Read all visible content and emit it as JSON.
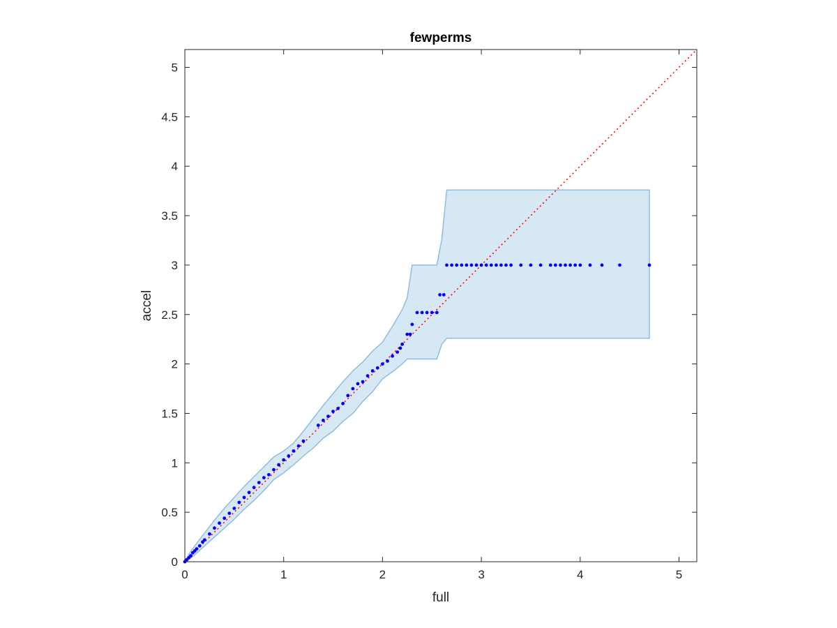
{
  "chart_data": {
    "type": "scatter",
    "title": "fewperms",
    "xlabel": "full",
    "ylabel": "accel",
    "xlim": [
      0,
      5.18
    ],
    "ylim": [
      0,
      5.18
    ],
    "x_ticks": [
      0,
      1,
      2,
      3,
      4,
      5
    ],
    "x_tick_labels": [
      "0",
      "1",
      "2",
      "3",
      "4",
      "5"
    ],
    "y_ticks": [
      0,
      0.5,
      1,
      1.5,
      2,
      2.5,
      3,
      3.5,
      4,
      4.5,
      5
    ],
    "y_tick_labels": [
      "0",
      "0.5",
      "1",
      "1.5",
      "2",
      "2.5",
      "3",
      "3.5",
      "4",
      "4.5",
      "5"
    ],
    "grid": false,
    "reference_line": {
      "description": "y = x",
      "color": "#ff0000",
      "style": "dotted"
    },
    "band": {
      "fill": "#d7e8f5",
      "stroke": "#8cbde0",
      "x": [
        0,
        0.05,
        0.1,
        0.2,
        0.3,
        0.4,
        0.5,
        0.6,
        0.7,
        0.8,
        0.9,
        1.0,
        1.1,
        1.2,
        1.3,
        1.4,
        1.5,
        1.6,
        1.7,
        1.8,
        1.9,
        2.0,
        2.1,
        2.2,
        2.25,
        2.3,
        2.4,
        2.5,
        2.55,
        2.6,
        2.65,
        4.7
      ],
      "upper": [
        0,
        0.09,
        0.16,
        0.29,
        0.42,
        0.54,
        0.65,
        0.76,
        0.86,
        0.96,
        1.06,
        1.12,
        1.2,
        1.32,
        1.45,
        1.58,
        1.7,
        1.82,
        1.93,
        2.02,
        2.13,
        2.22,
        2.38,
        2.55,
        2.67,
        3.0,
        3.0,
        3.0,
        3.0,
        3.26,
        3.76,
        3.76
      ],
      "lower": [
        0,
        0.03,
        0.07,
        0.16,
        0.25,
        0.34,
        0.43,
        0.53,
        0.62,
        0.72,
        0.83,
        0.9,
        0.98,
        1.07,
        1.15,
        1.25,
        1.32,
        1.42,
        1.5,
        1.62,
        1.72,
        1.85,
        1.92,
        2.0,
        2.05,
        2.05,
        2.05,
        2.05,
        2.05,
        2.2,
        2.26,
        2.26
      ]
    },
    "series": [
      {
        "color": "#0000ff",
        "points": [
          [
            0,
            0
          ],
          [
            0.02,
            0.02
          ],
          [
            0.04,
            0.04
          ],
          [
            0.06,
            0.06
          ],
          [
            0.08,
            0.09
          ],
          [
            0.1,
            0.11
          ],
          [
            0.12,
            0.13
          ],
          [
            0.15,
            0.16
          ],
          [
            0.18,
            0.2
          ],
          [
            0.2,
            0.22
          ],
          [
            0.25,
            0.28
          ],
          [
            0.3,
            0.34
          ],
          [
            0.35,
            0.39
          ],
          [
            0.4,
            0.44
          ],
          [
            0.45,
            0.49
          ],
          [
            0.5,
            0.54
          ],
          [
            0.55,
            0.6
          ],
          [
            0.6,
            0.65
          ],
          [
            0.65,
            0.7
          ],
          [
            0.7,
            0.75
          ],
          [
            0.75,
            0.8
          ],
          [
            0.8,
            0.85
          ],
          [
            0.85,
            0.88
          ],
          [
            0.9,
            0.93
          ],
          [
            0.95,
            0.98
          ],
          [
            1.0,
            1.03
          ],
          [
            1.05,
            1.07
          ],
          [
            1.1,
            1.12
          ],
          [
            1.15,
            1.17
          ],
          [
            1.2,
            1.22
          ],
          [
            1.35,
            1.38
          ],
          [
            1.4,
            1.43
          ],
          [
            1.45,
            1.47
          ],
          [
            1.5,
            1.52
          ],
          [
            1.55,
            1.55
          ],
          [
            1.6,
            1.6
          ],
          [
            1.65,
            1.68
          ],
          [
            1.7,
            1.75
          ],
          [
            1.75,
            1.8
          ],
          [
            1.8,
            1.82
          ],
          [
            1.85,
            1.88
          ],
          [
            1.9,
            1.93
          ],
          [
            1.95,
            1.96
          ],
          [
            2.0,
            2.0
          ],
          [
            2.05,
            2.03
          ],
          [
            2.1,
            2.08
          ],
          [
            2.15,
            2.12
          ],
          [
            2.18,
            2.16
          ],
          [
            2.2,
            2.2
          ],
          [
            2.25,
            2.3
          ],
          [
            2.28,
            2.3
          ],
          [
            2.3,
            2.4
          ],
          [
            2.35,
            2.52
          ],
          [
            2.4,
            2.52
          ],
          [
            2.45,
            2.52
          ],
          [
            2.5,
            2.52
          ],
          [
            2.55,
            2.52
          ],
          [
            2.58,
            2.7
          ],
          [
            2.62,
            2.7
          ],
          [
            2.65,
            3.0
          ],
          [
            2.7,
            3.0
          ],
          [
            2.75,
            3.0
          ],
          [
            2.8,
            3.0
          ],
          [
            2.85,
            3.0
          ],
          [
            2.9,
            3.0
          ],
          [
            2.95,
            3.0
          ],
          [
            3.0,
            3.0
          ],
          [
            3.05,
            3.0
          ],
          [
            3.1,
            3.0
          ],
          [
            3.15,
            3.0
          ],
          [
            3.2,
            3.0
          ],
          [
            3.25,
            3.0
          ],
          [
            3.3,
            3.0
          ],
          [
            3.4,
            3.0
          ],
          [
            3.5,
            3.0
          ],
          [
            3.6,
            3.0
          ],
          [
            3.7,
            3.0
          ],
          [
            3.75,
            3.0
          ],
          [
            3.8,
            3.0
          ],
          [
            3.85,
            3.0
          ],
          [
            3.9,
            3.0
          ],
          [
            3.95,
            3.0
          ],
          [
            4.0,
            3.0
          ],
          [
            4.1,
            3.0
          ],
          [
            4.22,
            3.0
          ],
          [
            4.4,
            3.0
          ],
          [
            4.7,
            3.0
          ]
        ]
      }
    ]
  }
}
